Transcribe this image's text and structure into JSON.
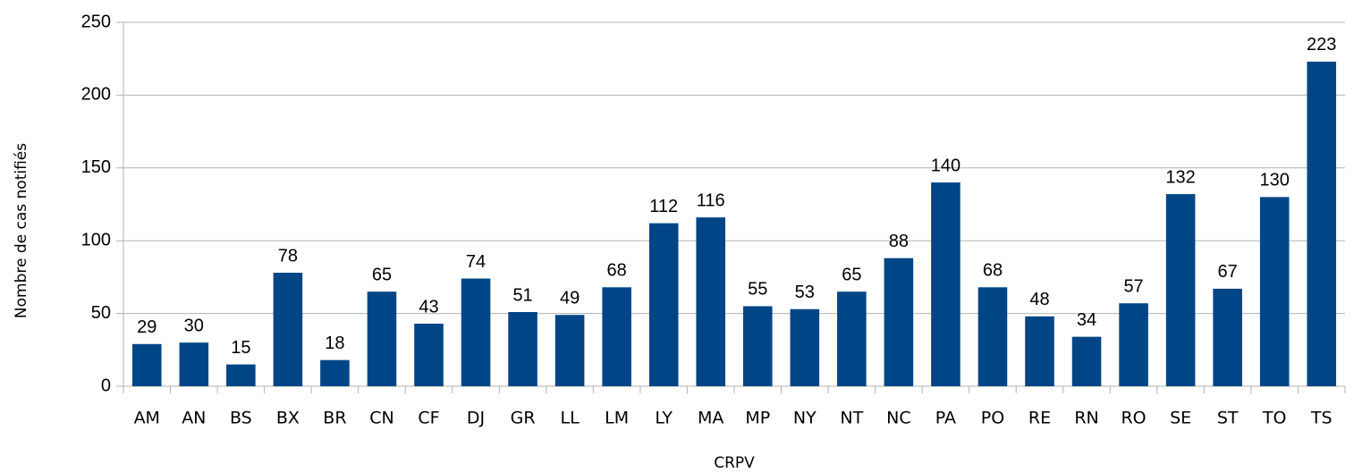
{
  "chart_data": {
    "type": "bar",
    "x_label": "CRPV",
    "y_label": "Nombre de cas notifiés",
    "categories": [
      "AM",
      "AN",
      "BS",
      "BX",
      "BR",
      "CN",
      "CF",
      "DJ",
      "GR",
      "LL",
      "LM",
      "LY",
      "MA",
      "MP",
      "NY",
      "NT",
      "NC",
      "PA",
      "PO",
      "RE",
      "RN",
      "RO",
      "SE",
      "ST",
      "TO",
      "TS"
    ],
    "values": [
      29,
      30,
      15,
      78,
      18,
      65,
      43,
      74,
      51,
      49,
      68,
      112,
      116,
      55,
      53,
      65,
      88,
      140,
      68,
      48,
      34,
      57,
      132,
      67,
      130,
      223
    ],
    "color": "#004586",
    "ylim": [
      0,
      250
    ],
    "yticks": [
      0,
      50,
      100,
      150,
      200,
      250
    ],
    "grid": true,
    "data_labels": true
  }
}
